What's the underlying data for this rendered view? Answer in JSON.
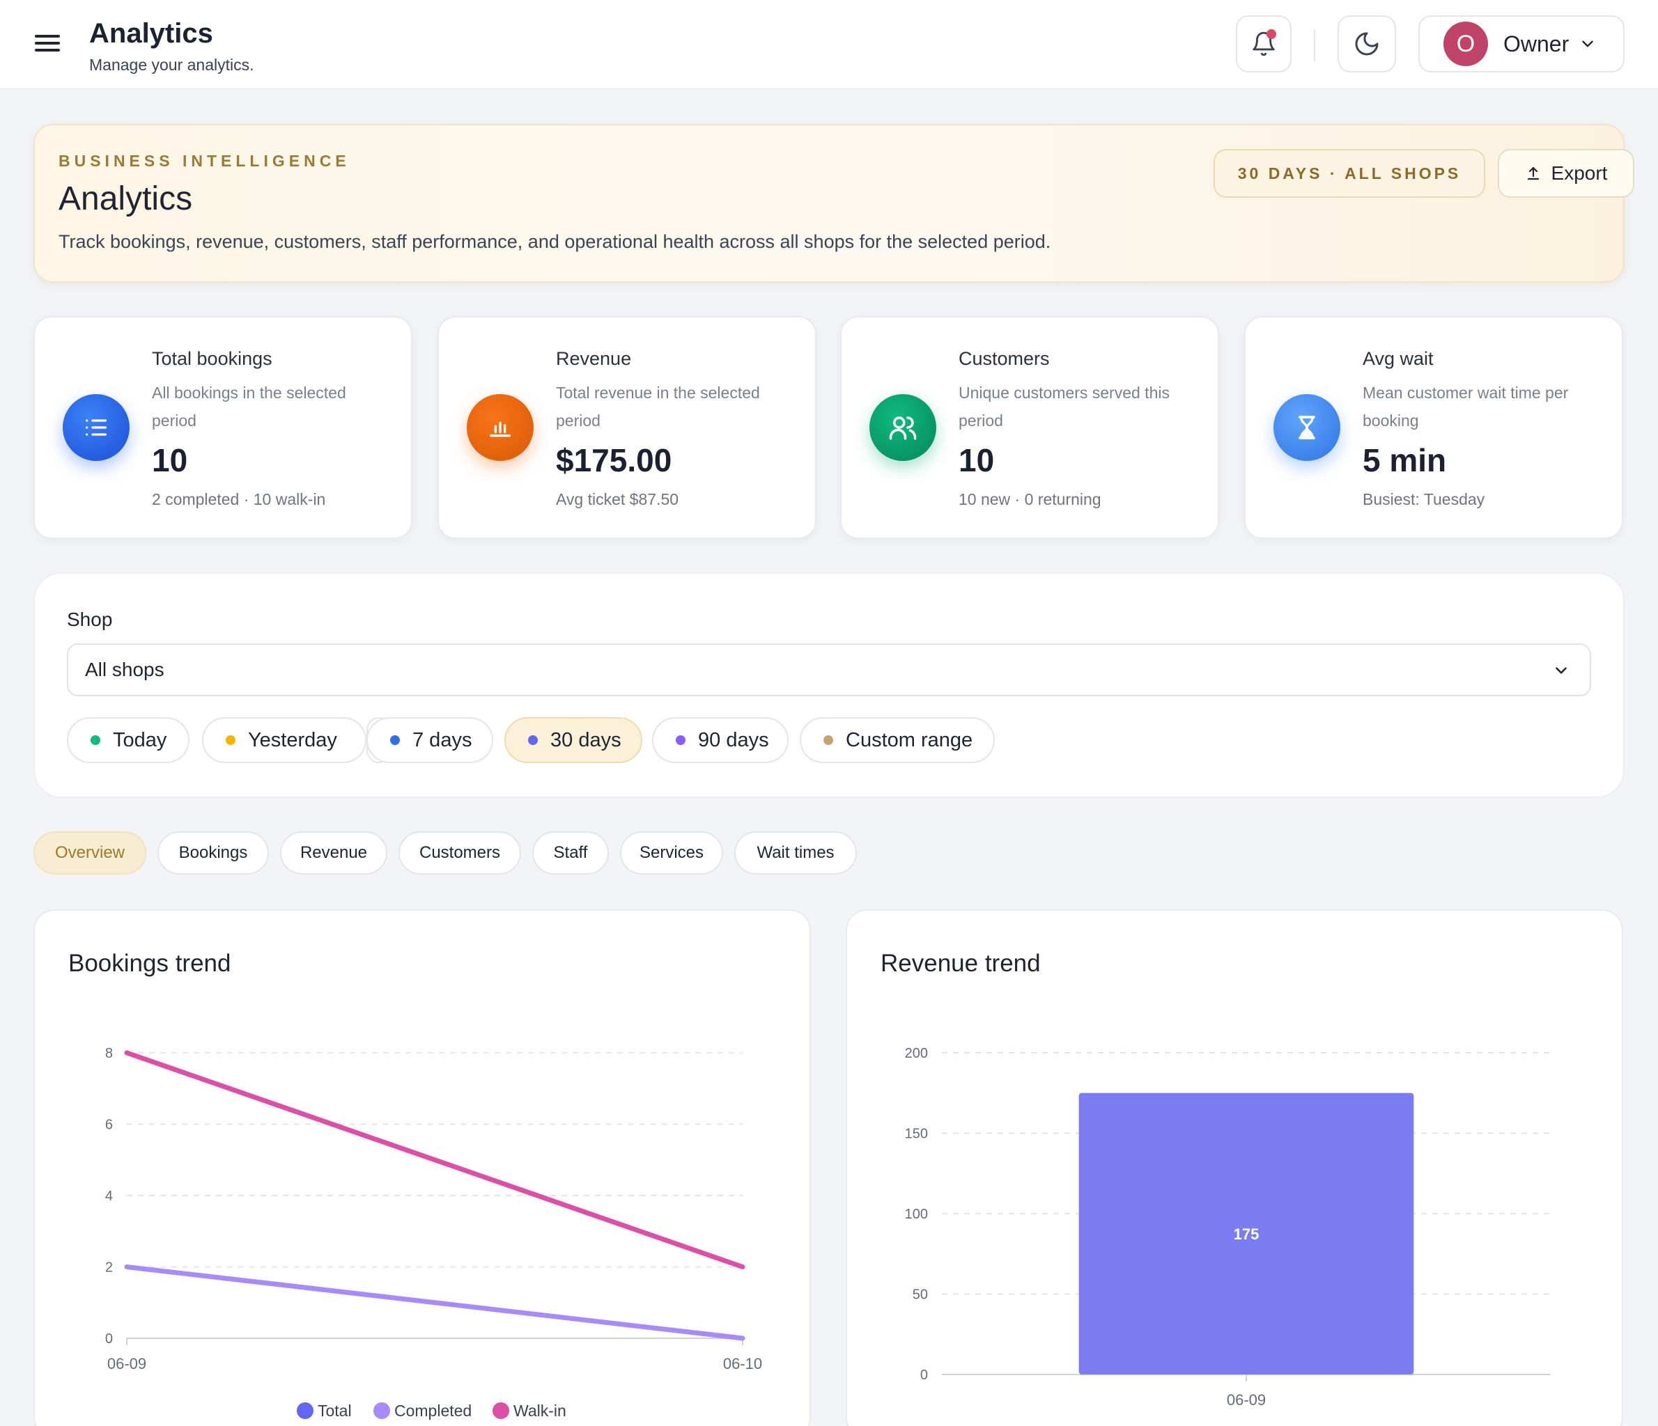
{
  "header": {
    "title": "Analytics",
    "subtitle": "Manage your analytics.",
    "user_initial": "O",
    "user_name": "Owner"
  },
  "hero": {
    "eyebrow": "BUSINESS INTELLIGENCE",
    "title": "Analytics",
    "description": "Track bookings, revenue, customers, staff performance, and operational health across all shops for the selected period.",
    "period_pill": "30 DAYS · ALL SHOPS",
    "export_label": "Export"
  },
  "stats": [
    {
      "label": "Total bookings",
      "desc": "All bookings in the selected period",
      "value": "10",
      "foot": "2 completed · 10 walk-in",
      "icon": "list-icon",
      "color": "#2563eb"
    },
    {
      "label": "Revenue",
      "desc": "Total revenue in the selected period",
      "value": "$175.00",
      "foot": "Avg ticket $87.50",
      "icon": "bar-chart-icon",
      "color": "#ea6a0c"
    },
    {
      "label": "Customers",
      "desc": "Unique customers served this period",
      "value": "10",
      "foot": "10 new · 0 returning",
      "icon": "users-icon",
      "color": "#0ea56f"
    },
    {
      "label": "Avg wait",
      "desc": "Mean customer wait time per booking",
      "value": "5 min",
      "foot": "Busiest: Tuesday",
      "icon": "hourglass-icon",
      "color": "#3b82f6"
    }
  ],
  "filters": {
    "shop_label": "Shop",
    "shop_value": "All shops",
    "ranges": [
      {
        "label": "Today",
        "color": "#10b981"
      },
      {
        "label": "Yesterday",
        "color": "#f5b400"
      },
      {
        "label": "7 days",
        "color": "#2f6fe8"
      },
      {
        "label": "30 days",
        "color": "#6366f1"
      },
      {
        "label": "90 days",
        "color": "#8b5cf6"
      },
      {
        "label": "Custom range",
        "color": "#c2a472"
      }
    ],
    "active_range": "30 days"
  },
  "tabs": [
    "Overview",
    "Bookings",
    "Revenue",
    "Customers",
    "Staff",
    "Services",
    "Wait times"
  ],
  "active_tab": "Overview",
  "chart_data": [
    {
      "type": "line",
      "title": "Bookings trend",
      "x": [
        "06-09",
        "06-10"
      ],
      "ylim": [
        0,
        8
      ],
      "yticks": [
        0,
        2,
        4,
        6,
        8
      ],
      "grid": true,
      "legend": "bottom",
      "series": [
        {
          "name": "Total",
          "values": [
            null,
            null
          ],
          "color": "#6366f1"
        },
        {
          "name": "Completed",
          "values": [
            2,
            0
          ],
          "color": "#a78bfa"
        },
        {
          "name": "Walk-in",
          "values": [
            8,
            2
          ],
          "color": "#db4fa6"
        }
      ]
    },
    {
      "type": "bar",
      "title": "Revenue trend",
      "categories": [
        "06-09"
      ],
      "values": [
        175
      ],
      "ylim": [
        0,
        200
      ],
      "yticks": [
        0,
        50,
        100,
        150,
        200
      ],
      "grid": true,
      "color": "#7b7cf2"
    }
  ]
}
